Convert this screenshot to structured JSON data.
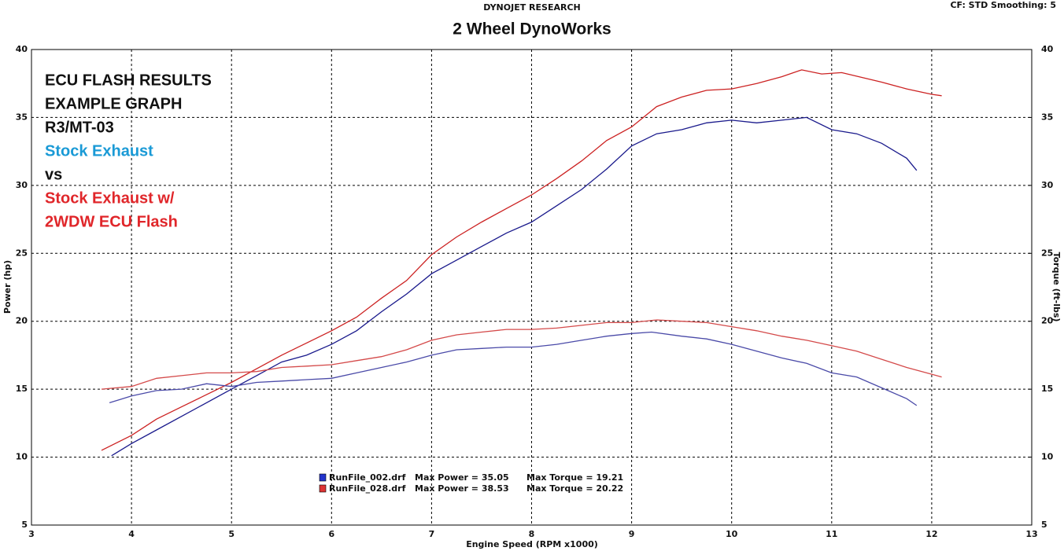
{
  "chart_data": {
    "type": "line",
    "title": "2 Wheel DynoWorks",
    "subtitle": "DYNOJET RESEARCH",
    "corner_note": "CF: STD  Smoothing: 5",
    "x_label": "Engine Speed (RPM x1000)",
    "y_label": "Power (hp)",
    "y2_label": "Torque (ft-lbs)",
    "annotations": [
      {
        "text": "ECU FLASH RESULTS",
        "color": "#111111"
      },
      {
        "text": "EXAMPLE GRAPH",
        "color": "#111111"
      },
      {
        "text": "R3/MT-03",
        "color": "#111111"
      },
      {
        "text": "Stock Exhaust",
        "color": "#1a9ad6"
      },
      {
        "text": "vs",
        "color": "#111111"
      },
      {
        "text": "Stock Exhaust w/",
        "color": "#e0262a"
      },
      {
        "text": "2WDW ECU Flash",
        "color": "#e0262a"
      }
    ],
    "legend": [
      {
        "file": "RunFile_002.drf",
        "power": "Max Power = 35.05",
        "torque": "Max Torque = 19.21",
        "color": "#2233cc"
      },
      {
        "file": "RunFile_028.drf",
        "power": "Max Power = 38.53",
        "torque": "Max Torque = 20.22",
        "color": "#dd3333"
      }
    ],
    "xlim": [
      3,
      13
    ],
    "xticks": [
      3,
      4,
      5,
      6,
      7,
      8,
      9,
      10,
      11,
      12,
      13
    ],
    "ylim": [
      5,
      40
    ],
    "yticks": [
      5,
      10,
      15,
      20,
      25,
      30,
      35,
      40
    ],
    "y2lim": [
      5,
      40
    ],
    "y2ticks": [
      5,
      10,
      15,
      20,
      25,
      30,
      35,
      40
    ],
    "grid": true,
    "series": [
      {
        "color": "#1a1a8c",
        "axis": "y",
        "x": [
          3.8,
          4.0,
          4.25,
          4.5,
          4.75,
          5.0,
          5.25,
          5.5,
          5.75,
          6.0,
          6.25,
          6.5,
          6.75,
          7.0,
          7.25,
          7.5,
          7.75,
          8.0,
          8.25,
          8.5,
          8.75,
          9.0,
          9.25,
          9.5,
          9.75,
          10.0,
          10.25,
          10.5,
          10.75,
          11.0,
          11.25,
          11.5,
          11.75,
          11.85
        ],
        "values": [
          10.1,
          11.0,
          12.0,
          13.0,
          14.0,
          15.0,
          16.0,
          17.0,
          17.5,
          18.3,
          19.3,
          20.7,
          22.0,
          23.5,
          24.5,
          25.5,
          26.5,
          27.3,
          28.5,
          29.7,
          31.2,
          32.9,
          33.8,
          34.1,
          34.6,
          34.8,
          34.6,
          34.8,
          35.0,
          34.1,
          33.8,
          33.1,
          32.0,
          31.1
        ]
      },
      {
        "color": "#cc2222",
        "axis": "y",
        "x": [
          3.7,
          4.0,
          4.25,
          4.5,
          4.75,
          5.0,
          5.25,
          5.5,
          5.75,
          6.0,
          6.25,
          6.5,
          6.75,
          7.0,
          7.25,
          7.5,
          7.75,
          8.0,
          8.25,
          8.5,
          8.75,
          9.0,
          9.25,
          9.5,
          9.75,
          10.0,
          10.25,
          10.5,
          10.7,
          10.9,
          11.1,
          11.5,
          11.75,
          12.0,
          12.1
        ],
        "values": [
          10.5,
          11.6,
          12.8,
          13.7,
          14.6,
          15.5,
          16.5,
          17.5,
          18.4,
          19.3,
          20.3,
          21.7,
          23.0,
          24.9,
          26.2,
          27.3,
          28.3,
          29.3,
          30.5,
          31.8,
          33.3,
          34.3,
          35.8,
          36.5,
          37.0,
          37.1,
          37.5,
          38.0,
          38.5,
          38.2,
          38.3,
          37.6,
          37.1,
          36.7,
          36.6
        ]
      },
      {
        "color": "#4a4aa8",
        "axis": "y2",
        "x": [
          3.78,
          4.0,
          4.25,
          4.5,
          4.75,
          5.0,
          5.25,
          5.5,
          5.75,
          6.0,
          6.25,
          6.5,
          6.75,
          7.0,
          7.25,
          7.5,
          7.75,
          8.0,
          8.25,
          8.5,
          8.75,
          9.0,
          9.2,
          9.5,
          9.75,
          10.0,
          10.25,
          10.5,
          10.75,
          11.0,
          11.25,
          11.5,
          11.75,
          11.85
        ],
        "values": [
          14.0,
          14.5,
          14.9,
          15.0,
          15.4,
          15.2,
          15.5,
          15.6,
          15.7,
          15.8,
          16.2,
          16.6,
          17.0,
          17.5,
          17.9,
          18.0,
          18.1,
          18.1,
          18.3,
          18.6,
          18.9,
          19.1,
          19.2,
          18.9,
          18.7,
          18.3,
          17.8,
          17.3,
          16.9,
          16.2,
          15.9,
          15.1,
          14.3,
          13.8
        ]
      },
      {
        "color": "#d44a4a",
        "axis": "y2",
        "x": [
          3.7,
          4.0,
          4.25,
          4.5,
          4.75,
          5.0,
          5.25,
          5.5,
          5.75,
          6.0,
          6.25,
          6.5,
          6.75,
          7.0,
          7.25,
          7.5,
          7.75,
          8.0,
          8.25,
          8.5,
          8.75,
          9.0,
          9.25,
          9.5,
          9.75,
          10.0,
          10.25,
          10.5,
          10.75,
          11.0,
          11.25,
          11.5,
          11.75,
          12.0,
          12.1
        ],
        "values": [
          15.0,
          15.2,
          15.8,
          16.0,
          16.2,
          16.2,
          16.3,
          16.6,
          16.7,
          16.8,
          17.1,
          17.4,
          17.9,
          18.6,
          19.0,
          19.2,
          19.4,
          19.4,
          19.5,
          19.7,
          19.9,
          19.9,
          20.1,
          20.0,
          19.9,
          19.6,
          19.3,
          18.9,
          18.6,
          18.2,
          17.8,
          17.2,
          16.6,
          16.1,
          15.9
        ]
      }
    ]
  }
}
